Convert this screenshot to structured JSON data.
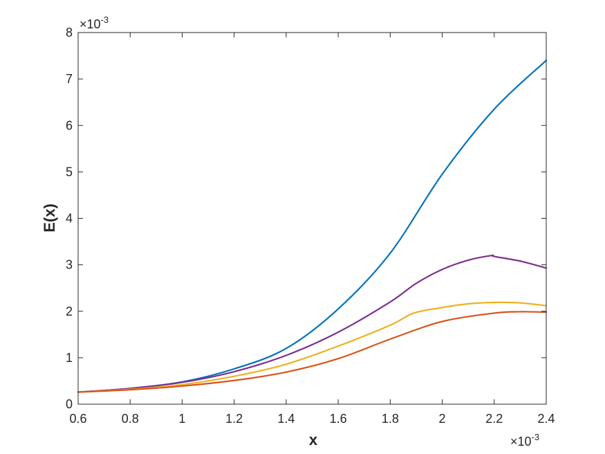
{
  "chart_data": {
    "type": "line",
    "title": "",
    "xlabel": "x",
    "ylabel": "E(x)",
    "x_multiplier": "×10",
    "x_multiplier_exp": "-3",
    "y_multiplier": "×10",
    "y_multiplier_exp": "-3",
    "xlim": [
      0.6,
      2.4
    ],
    "ylim": [
      0,
      8
    ],
    "xticks": [
      "0.6",
      "0.8",
      "1",
      "1.2",
      "1.4",
      "1.6",
      "1.8",
      "2",
      "2.2",
      "2.4"
    ],
    "yticks": [
      "0",
      "1",
      "2",
      "3",
      "4",
      "5",
      "6",
      "7",
      "8"
    ],
    "grid": false,
    "legend": "none",
    "series": [
      {
        "color": "#0072BD",
        "x": [
          0.6,
          0.8,
          1.0,
          1.2,
          1.4,
          1.6,
          1.8,
          2.0,
          2.2,
          2.4
        ],
        "y": [
          0.26,
          0.34,
          0.48,
          0.76,
          1.2,
          2.05,
          3.25,
          4.95,
          6.35,
          7.4
        ]
      },
      {
        "color": "#7E2F8E",
        "x": [
          0.6,
          0.8,
          1.0,
          1.2,
          1.4,
          1.6,
          1.8,
          1.9,
          2.0,
          2.1,
          2.19,
          2.2,
          2.3,
          2.4
        ],
        "y": [
          0.26,
          0.34,
          0.47,
          0.7,
          1.05,
          1.55,
          2.2,
          2.6,
          2.9,
          3.1,
          3.2,
          3.18,
          3.08,
          2.93
        ]
      },
      {
        "color": "#EDB120",
        "x": [
          0.6,
          0.8,
          1.0,
          1.2,
          1.4,
          1.6,
          1.8,
          1.89,
          2.0,
          2.1,
          2.2,
          2.3,
          2.4
        ],
        "y": [
          0.26,
          0.32,
          0.42,
          0.6,
          0.86,
          1.25,
          1.7,
          1.96,
          2.08,
          2.16,
          2.19,
          2.18,
          2.12
        ]
      },
      {
        "color": "#D95319",
        "x": [
          0.6,
          0.8,
          1.0,
          1.2,
          1.4,
          1.6,
          1.8,
          2.0,
          2.2,
          2.3,
          2.4
        ],
        "y": [
          0.26,
          0.31,
          0.39,
          0.51,
          0.69,
          0.98,
          1.4,
          1.78,
          1.96,
          1.99,
          1.98
        ]
      }
    ]
  }
}
